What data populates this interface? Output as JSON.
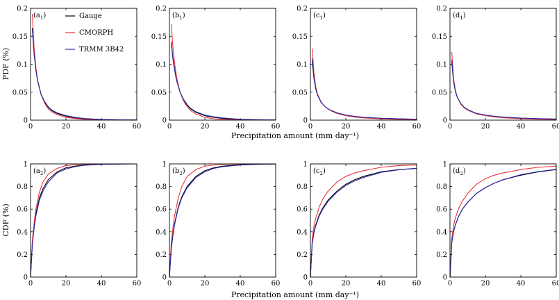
{
  "chart_data": {
    "type": "line",
    "xlabel": "Precipitation amount (mm day⁻¹)",
    "legend_position": "top-right",
    "series_styles": [
      {
        "name": "Gauge",
        "color": "#000000"
      },
      {
        "name": "CMORPH",
        "color": "#e8333c"
      },
      {
        "name": "TRMM 3B42",
        "color": "#2a2aa8"
      }
    ],
    "rows": [
      {
        "kind": "pdf",
        "ylabel": "PDF (%)",
        "ylim": [
          0,
          0.2
        ],
        "yticks": [
          "0",
          "0.05",
          "0.1",
          "0.15",
          "0.2"
        ],
        "ytick_values": [
          0,
          0.05,
          0.1,
          0.15,
          0.2
        ],
        "xlim": [
          0,
          60
        ],
        "xticks": [
          "0",
          "20",
          "40",
          "60"
        ],
        "xtick_values": [
          0,
          20,
          40,
          60
        ]
      },
      {
        "kind": "cdf",
        "ylabel": "CDF (%)",
        "ylim": [
          0,
          1
        ],
        "yticks": [
          "0",
          "0.2",
          "0.4",
          "0.6",
          "0.8",
          "1"
        ],
        "ytick_values": [
          0,
          0.2,
          0.4,
          0.6,
          0.8,
          1
        ],
        "xlim": [
          0,
          60
        ],
        "xticks": [
          "0",
          "20",
          "40",
          "60"
        ],
        "xtick_values": [
          0,
          20,
          40,
          60
        ]
      }
    ],
    "panels": [
      {
        "id": "a1",
        "label_main": "(a",
        "label_sub": "1",
        "row": 0,
        "col": 0,
        "legend": true,
        "series": [
          {
            "name": "Gauge",
            "x": [
              1,
              2,
              3,
              4,
              6,
              8,
              10,
              12,
              15,
              20,
              25,
              30,
              40,
              50,
              60
            ],
            "y": [
              0.165,
              0.12,
              0.09,
              0.07,
              0.045,
              0.032,
              0.023,
              0.017,
              0.012,
              0.007,
              0.004,
              0.0025,
              0.001,
              0.0005,
              0.0002
            ]
          },
          {
            "name": "CMORPH",
            "x": [
              1,
              2,
              3,
              4,
              6,
              8,
              10,
              12,
              15,
              20,
              25,
              30,
              40,
              50,
              60
            ],
            "y": [
              0.19,
              0.13,
              0.095,
              0.072,
              0.045,
              0.03,
              0.02,
              0.015,
              0.01,
              0.005,
              0.003,
              0.0015,
              0.0005,
              0.0002,
              0.0001
            ]
          },
          {
            "name": "TRMM 3B42",
            "x": [
              1,
              2,
              3,
              4,
              6,
              8,
              10,
              12,
              15,
              20,
              25,
              30,
              40,
              50,
              60
            ],
            "y": [
              0.162,
              0.118,
              0.09,
              0.07,
              0.046,
              0.033,
              0.024,
              0.018,
              0.013,
              0.008,
              0.005,
              0.003,
              0.0012,
              0.0006,
              0.0003
            ]
          }
        ]
      },
      {
        "id": "b1",
        "label_main": "(b",
        "label_sub": "1",
        "row": 0,
        "col": 1,
        "legend": false,
        "series": [
          {
            "name": "Gauge",
            "x": [
              1,
              2,
              3,
              4,
              6,
              8,
              10,
              12,
              15,
              20,
              25,
              30,
              40,
              50,
              60
            ],
            "y": [
              0.14,
              0.11,
              0.09,
              0.072,
              0.05,
              0.036,
              0.027,
              0.02,
              0.014,
              0.008,
              0.005,
              0.003,
              0.0012,
              0.0005,
              0.0002
            ]
          },
          {
            "name": "CMORPH",
            "x": [
              1,
              2,
              3,
              4,
              6,
              8,
              10,
              12,
              15,
              20,
              25,
              30,
              40,
              50,
              60
            ],
            "y": [
              0.172,
              0.13,
              0.1,
              0.078,
              0.05,
              0.034,
              0.024,
              0.017,
              0.011,
              0.005,
              0.0025,
              0.0012,
              0.0004,
              0.0001,
              0.0001
            ]
          },
          {
            "name": "TRMM 3B42",
            "x": [
              1,
              2,
              3,
              4,
              6,
              8,
              10,
              12,
              15,
              20,
              25,
              30,
              40,
              50,
              60
            ],
            "y": [
              0.138,
              0.108,
              0.088,
              0.071,
              0.05,
              0.037,
              0.028,
              0.021,
              0.015,
              0.009,
              0.006,
              0.004,
              0.0015,
              0.0007,
              0.0003
            ]
          }
        ]
      },
      {
        "id": "c1",
        "label_main": "(c",
        "label_sub": "1",
        "row": 0,
        "col": 2,
        "legend": false,
        "series": [
          {
            "name": "Gauge",
            "x": [
              1,
              2,
              3,
              4,
              6,
              8,
              10,
              12,
              15,
              20,
              25,
              30,
              40,
              50,
              60
            ],
            "y": [
              0.105,
              0.075,
              0.056,
              0.045,
              0.032,
              0.025,
              0.02,
              0.017,
              0.013,
              0.009,
              0.0065,
              0.005,
              0.0032,
              0.0022,
              0.0015
            ]
          },
          {
            "name": "CMORPH",
            "x": [
              1,
              2,
              3,
              4,
              6,
              8,
              10,
              12,
              15,
              20,
              25,
              30,
              40,
              50,
              60
            ],
            "y": [
              0.128,
              0.085,
              0.06,
              0.047,
              0.033,
              0.025,
              0.02,
              0.016,
              0.012,
              0.008,
              0.0055,
              0.004,
              0.0022,
              0.0013,
              0.0008
            ]
          },
          {
            "name": "TRMM 3B42",
            "x": [
              1,
              2,
              3,
              4,
              6,
              8,
              10,
              12,
              15,
              20,
              25,
              30,
              40,
              50,
              60
            ],
            "y": [
              0.11,
              0.077,
              0.057,
              0.045,
              0.032,
              0.025,
              0.02,
              0.017,
              0.013,
              0.009,
              0.0068,
              0.0052,
              0.0034,
              0.0024,
              0.0017
            ]
          }
        ]
      },
      {
        "id": "d1",
        "label_main": "(d",
        "label_sub": "1",
        "row": 0,
        "col": 3,
        "legend": false,
        "series": [
          {
            "name": "Gauge",
            "x": [
              1,
              2,
              3,
              4,
              6,
              8,
              10,
              12,
              15,
              20,
              25,
              30,
              40,
              50,
              60
            ],
            "y": [
              0.103,
              0.07,
              0.052,
              0.042,
              0.03,
              0.023,
              0.019,
              0.016,
              0.012,
              0.009,
              0.0068,
              0.0053,
              0.0035,
              0.0025,
              0.0018
            ]
          },
          {
            "name": "CMORPH",
            "x": [
              1,
              2,
              3,
              4,
              6,
              8,
              10,
              12,
              15,
              20,
              25,
              30,
              40,
              50,
              60
            ],
            "y": [
              0.122,
              0.075,
              0.054,
              0.042,
              0.029,
              0.022,
              0.018,
              0.015,
              0.011,
              0.008,
              0.0058,
              0.0043,
              0.0026,
              0.0016,
              0.001
            ]
          },
          {
            "name": "TRMM 3B42",
            "x": [
              1,
              2,
              3,
              4,
              6,
              8,
              10,
              12,
              15,
              20,
              25,
              30,
              40,
              50,
              60
            ],
            "y": [
              0.108,
              0.072,
              0.053,
              0.042,
              0.03,
              0.023,
              0.019,
              0.016,
              0.012,
              0.009,
              0.007,
              0.0055,
              0.0037,
              0.0027,
              0.002
            ]
          }
        ]
      },
      {
        "id": "a2",
        "label_main": "(a",
        "label_sub": "2",
        "row": 1,
        "col": 0,
        "legend": false,
        "series": [
          {
            "name": "Gauge",
            "x": [
              0,
              1,
              2,
              3,
              5,
              7,
              10,
              15,
              20,
              25,
              30,
              40,
              50,
              60
            ],
            "y": [
              0,
              0.3,
              0.45,
              0.56,
              0.7,
              0.78,
              0.86,
              0.93,
              0.965,
              0.98,
              0.99,
              0.997,
              0.999,
              1.0
            ]
          },
          {
            "name": "CMORPH",
            "x": [
              0,
              1,
              2,
              3,
              5,
              7,
              10,
              15,
              20,
              25,
              30,
              40,
              50,
              60
            ],
            "y": [
              0,
              0.32,
              0.48,
              0.6,
              0.75,
              0.84,
              0.91,
              0.96,
              0.985,
              0.993,
              0.997,
              0.999,
              1.0,
              1.0
            ]
          },
          {
            "name": "TRMM 3B42",
            "x": [
              0,
              1,
              2,
              3,
              5,
              7,
              10,
              15,
              20,
              25,
              30,
              40,
              50,
              60
            ],
            "y": [
              0,
              0.28,
              0.43,
              0.54,
              0.68,
              0.76,
              0.84,
              0.92,
              0.955,
              0.975,
              0.987,
              0.996,
              0.999,
              1.0
            ]
          }
        ]
      },
      {
        "id": "b2",
        "label_main": "(b",
        "label_sub": "2",
        "row": 1,
        "col": 1,
        "legend": false,
        "series": [
          {
            "name": "Gauge",
            "x": [
              0,
              1,
              2,
              3,
              5,
              7,
              10,
              15,
              20,
              25,
              30,
              40,
              50,
              60
            ],
            "y": [
              0,
              0.25,
              0.38,
              0.48,
              0.62,
              0.71,
              0.8,
              0.89,
              0.94,
              0.965,
              0.98,
              0.993,
              0.998,
              1.0
            ]
          },
          {
            "name": "CMORPH",
            "x": [
              0,
              1,
              2,
              3,
              5,
              7,
              10,
              15,
              20,
              25,
              30,
              40,
              50,
              60
            ],
            "y": [
              0,
              0.3,
              0.44,
              0.55,
              0.7,
              0.8,
              0.89,
              0.95,
              0.98,
              0.99,
              0.996,
              0.999,
              1.0,
              1.0
            ]
          },
          {
            "name": "TRMM 3B42",
            "x": [
              0,
              1,
              2,
              3,
              5,
              7,
              10,
              15,
              20,
              25,
              30,
              40,
              50,
              60
            ],
            "y": [
              0,
              0.24,
              0.37,
              0.47,
              0.61,
              0.7,
              0.79,
              0.88,
              0.93,
              0.96,
              0.975,
              0.99,
              0.996,
              0.999
            ]
          }
        ]
      },
      {
        "id": "c2",
        "label_main": "(c",
        "label_sub": "2",
        "row": 1,
        "col": 2,
        "legend": false,
        "series": [
          {
            "name": "Gauge",
            "x": [
              0,
              1,
              2,
              3,
              5,
              7,
              10,
              15,
              20,
              25,
              30,
              40,
              50,
              60
            ],
            "y": [
              0,
              0.3,
              0.4,
              0.46,
              0.55,
              0.61,
              0.68,
              0.76,
              0.82,
              0.86,
              0.89,
              0.93,
              0.95,
              0.96
            ]
          },
          {
            "name": "CMORPH",
            "x": [
              0,
              1,
              2,
              3,
              5,
              7,
              10,
              15,
              20,
              25,
              30,
              40,
              50,
              60
            ],
            "y": [
              0,
              0.33,
              0.45,
              0.52,
              0.62,
              0.69,
              0.76,
              0.84,
              0.89,
              0.92,
              0.94,
              0.97,
              0.985,
              0.99
            ]
          },
          {
            "name": "TRMM 3B42",
            "x": [
              0,
              1,
              2,
              3,
              5,
              7,
              10,
              15,
              20,
              25,
              30,
              40,
              50,
              60
            ],
            "y": [
              0,
              0.29,
              0.39,
              0.45,
              0.54,
              0.6,
              0.67,
              0.75,
              0.81,
              0.85,
              0.88,
              0.925,
              0.948,
              0.962
            ]
          }
        ]
      },
      {
        "id": "d2",
        "label_main": "(d",
        "label_sub": "2",
        "row": 1,
        "col": 3,
        "legend": false,
        "series": [
          {
            "name": "Gauge",
            "x": [
              0,
              1,
              2,
              3,
              5,
              7,
              10,
              15,
              20,
              25,
              30,
              40,
              50,
              60
            ],
            "y": [
              0,
              0.3,
              0.4,
              0.46,
              0.54,
              0.6,
              0.66,
              0.74,
              0.79,
              0.83,
              0.86,
              0.9,
              0.93,
              0.95
            ]
          },
          {
            "name": "CMORPH",
            "x": [
              0,
              1,
              2,
              3,
              5,
              7,
              10,
              15,
              20,
              25,
              30,
              40,
              50,
              60
            ],
            "y": [
              0,
              0.34,
              0.45,
              0.52,
              0.61,
              0.67,
              0.74,
              0.82,
              0.87,
              0.9,
              0.92,
              0.95,
              0.97,
              0.98
            ]
          },
          {
            "name": "TRMM 3B42",
            "x": [
              0,
              1,
              2,
              3,
              5,
              7,
              10,
              15,
              20,
              25,
              30,
              40,
              50,
              60
            ],
            "y": [
              0,
              0.3,
              0.4,
              0.46,
              0.54,
              0.6,
              0.66,
              0.74,
              0.79,
              0.83,
              0.86,
              0.905,
              0.932,
              0.952
            ]
          }
        ]
      }
    ]
  }
}
